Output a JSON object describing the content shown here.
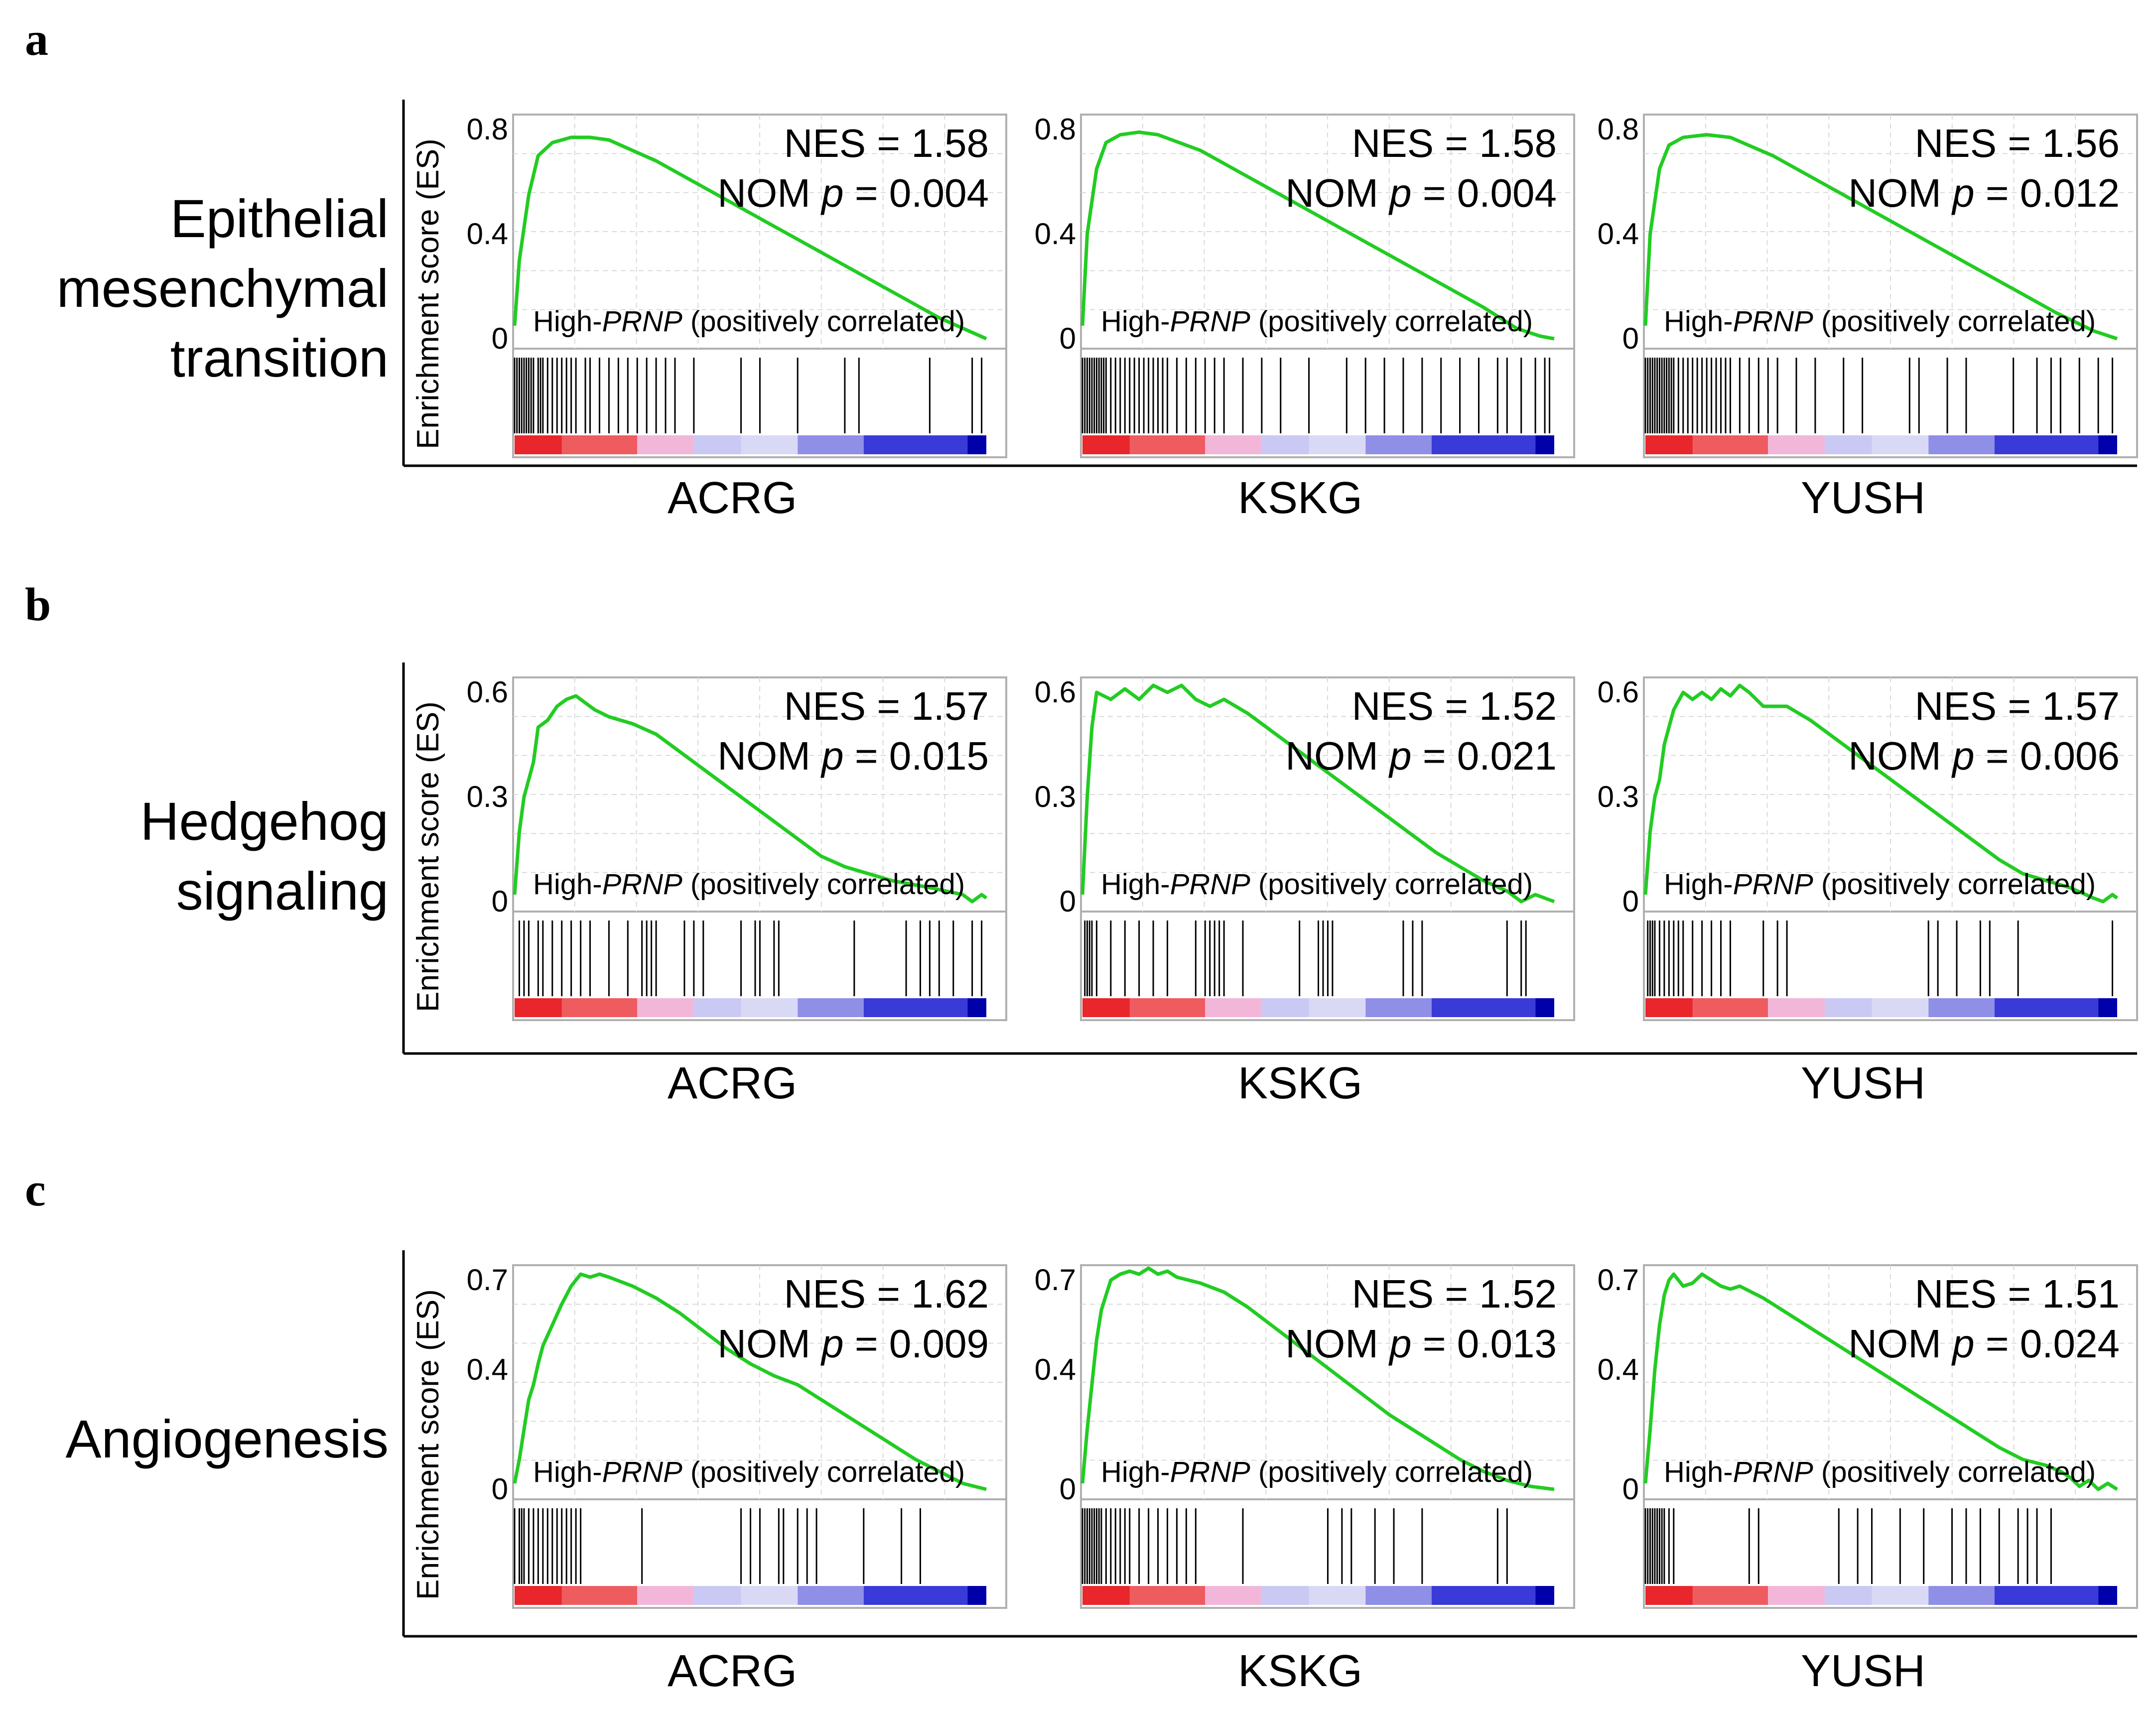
{
  "panels": [
    {
      "letter": "a",
      "title": [
        "Epithelial",
        "mesenchymal",
        "transition"
      ]
    },
    {
      "letter": "b",
      "title": [
        "Hedgehog",
        "signaling"
      ]
    },
    {
      "letter": "c",
      "title": [
        "Angiogenesis"
      ]
    }
  ],
  "datasets": [
    "ACRG",
    "KSKG",
    "YUSH"
  ],
  "ylabel": "Enrichment score (ES)",
  "corr_label": {
    "prefix": "High-",
    "gene": "PRNP",
    "suffix": " (positively correlated)"
  },
  "stat_labels": {
    "nes": "NES = ",
    "nom": "NOM ",
    "p": "p",
    "eq": " = "
  },
  "colors": {
    "es_curve": "#22cc22",
    "hits": "#000000",
    "rank_red": "#e8262b",
    "rank_pink": "#f2b6d9",
    "rank_lavender": "#c9c9f3",
    "rank_blue": "#3a3ad9",
    "rank_navy": "#0000aa"
  },
  "chart_data": [
    {
      "type": "line",
      "row": "a",
      "dataset": "ACRG",
      "nes": "1.58",
      "nom_p": "0.004",
      "yticks": [
        "0.8",
        "0.4",
        "0"
      ],
      "ylim": [
        0,
        0.8
      ],
      "es_curve": [
        [
          0,
          0.05
        ],
        [
          0.01,
          0.3
        ],
        [
          0.03,
          0.55
        ],
        [
          0.05,
          0.7
        ],
        [
          0.08,
          0.75
        ],
        [
          0.12,
          0.77
        ],
        [
          0.16,
          0.77
        ],
        [
          0.2,
          0.76
        ],
        [
          0.3,
          0.68
        ],
        [
          0.4,
          0.58
        ],
        [
          0.5,
          0.48
        ],
        [
          0.6,
          0.38
        ],
        [
          0.7,
          0.28
        ],
        [
          0.8,
          0.18
        ],
        [
          0.9,
          0.08
        ],
        [
          1.0,
          0.0
        ]
      ],
      "hits": [
        0,
        0.005,
        0.01,
        0.015,
        0.02,
        0.025,
        0.03,
        0.035,
        0.04,
        0.05,
        0.055,
        0.06,
        0.07,
        0.08,
        0.09,
        0.1,
        0.11,
        0.12,
        0.13,
        0.15,
        0.16,
        0.18,
        0.2,
        0.22,
        0.24,
        0.26,
        0.28,
        0.3,
        0.32,
        0.34,
        0.38,
        0.48,
        0.52,
        0.6,
        0.7,
        0.73,
        0.88,
        0.97,
        0.99
      ]
    },
    {
      "type": "line",
      "row": "a",
      "dataset": "KSKG",
      "nes": "1.58",
      "nom_p": "0.004",
      "yticks": [
        "0.8",
        "0.4",
        "0"
      ],
      "ylim": [
        0,
        0.8
      ],
      "es_curve": [
        [
          0,
          0.05
        ],
        [
          0.01,
          0.4
        ],
        [
          0.03,
          0.65
        ],
        [
          0.05,
          0.75
        ],
        [
          0.08,
          0.78
        ],
        [
          0.12,
          0.79
        ],
        [
          0.16,
          0.78
        ],
        [
          0.25,
          0.72
        ],
        [
          0.35,
          0.62
        ],
        [
          0.45,
          0.52
        ],
        [
          0.55,
          0.42
        ],
        [
          0.65,
          0.32
        ],
        [
          0.75,
          0.22
        ],
        [
          0.85,
          0.12
        ],
        [
          0.92,
          0.04
        ],
        [
          0.97,
          0.01
        ],
        [
          1.0,
          0.0
        ]
      ],
      "hits": [
        0,
        0.005,
        0.01,
        0.015,
        0.02,
        0.025,
        0.03,
        0.035,
        0.04,
        0.045,
        0.05,
        0.06,
        0.07,
        0.08,
        0.09,
        0.1,
        0.11,
        0.12,
        0.13,
        0.14,
        0.15,
        0.16,
        0.17,
        0.18,
        0.2,
        0.22,
        0.24,
        0.26,
        0.28,
        0.3,
        0.34,
        0.38,
        0.42,
        0.48,
        0.56,
        0.6,
        0.64,
        0.68,
        0.72,
        0.76,
        0.8,
        0.84,
        0.88,
        0.9,
        0.93,
        0.96,
        0.98,
        0.99
      ]
    },
    {
      "type": "line",
      "row": "a",
      "dataset": "YUSH",
      "nes": "1.56",
      "nom_p": "0.012",
      "yticks": [
        "0.8",
        "0.4",
        "0"
      ],
      "ylim": [
        0,
        0.8
      ],
      "es_curve": [
        [
          0,
          0.05
        ],
        [
          0.01,
          0.4
        ],
        [
          0.03,
          0.65
        ],
        [
          0.05,
          0.74
        ],
        [
          0.08,
          0.77
        ],
        [
          0.13,
          0.78
        ],
        [
          0.18,
          0.77
        ],
        [
          0.27,
          0.7
        ],
        [
          0.37,
          0.6
        ],
        [
          0.47,
          0.5
        ],
        [
          0.57,
          0.4
        ],
        [
          0.67,
          0.3
        ],
        [
          0.77,
          0.2
        ],
        [
          0.87,
          0.1
        ],
        [
          0.95,
          0.03
        ],
        [
          1.0,
          0.0
        ]
      ],
      "hits": [
        0,
        0.005,
        0.01,
        0.015,
        0.02,
        0.025,
        0.03,
        0.035,
        0.04,
        0.045,
        0.05,
        0.055,
        0.06,
        0.07,
        0.08,
        0.09,
        0.1,
        0.11,
        0.12,
        0.13,
        0.14,
        0.15,
        0.16,
        0.17,
        0.18,
        0.2,
        0.22,
        0.24,
        0.26,
        0.28,
        0.32,
        0.36,
        0.42,
        0.46,
        0.56,
        0.58,
        0.64,
        0.68,
        0.78,
        0.83,
        0.86,
        0.88,
        0.92,
        0.96,
        0.99
      ]
    },
    {
      "type": "line",
      "row": "b",
      "dataset": "ACRG",
      "nes": "1.57",
      "nom_p": "0.015",
      "yticks": [
        "0.6",
        "0.3",
        "0"
      ],
      "ylim": [
        0,
        0.6
      ],
      "es_curve": [
        [
          0,
          0.02
        ],
        [
          0.01,
          0.2
        ],
        [
          0.02,
          0.3
        ],
        [
          0.04,
          0.4
        ],
        [
          0.05,
          0.5
        ],
        [
          0.07,
          0.52
        ],
        [
          0.09,
          0.56
        ],
        [
          0.11,
          0.58
        ],
        [
          0.13,
          0.59
        ],
        [
          0.15,
          0.57
        ],
        [
          0.17,
          0.55
        ],
        [
          0.2,
          0.53
        ],
        [
          0.25,
          0.51
        ],
        [
          0.3,
          0.48
        ],
        [
          0.35,
          0.43
        ],
        [
          0.4,
          0.38
        ],
        [
          0.45,
          0.33
        ],
        [
          0.5,
          0.28
        ],
        [
          0.55,
          0.23
        ],
        [
          0.6,
          0.18
        ],
        [
          0.65,
          0.13
        ],
        [
          0.7,
          0.1
        ],
        [
          0.8,
          0.06
        ],
        [
          0.88,
          0.04
        ],
        [
          0.95,
          0.02
        ],
        [
          0.97,
          0.0
        ],
        [
          0.99,
          0.02
        ],
        [
          1.0,
          0.01
        ]
      ],
      "hits": [
        0.01,
        0.02,
        0.03,
        0.05,
        0.06,
        0.08,
        0.1,
        0.12,
        0.14,
        0.16,
        0.2,
        0.24,
        0.27,
        0.28,
        0.29,
        0.3,
        0.36,
        0.38,
        0.4,
        0.48,
        0.51,
        0.52,
        0.55,
        0.56,
        0.72,
        0.83,
        0.86,
        0.88,
        0.9,
        0.93,
        0.97,
        0.99
      ]
    },
    {
      "type": "line",
      "row": "b",
      "dataset": "KSKG",
      "nes": "1.52",
      "nom_p": "0.021",
      "yticks": [
        "0.6",
        "0.3",
        "0"
      ],
      "ylim": [
        0,
        0.6
      ],
      "es_curve": [
        [
          0,
          0.02
        ],
        [
          0.01,
          0.3
        ],
        [
          0.02,
          0.5
        ],
        [
          0.03,
          0.6
        ],
        [
          0.06,
          0.58
        ],
        [
          0.09,
          0.61
        ],
        [
          0.12,
          0.58
        ],
        [
          0.15,
          0.62
        ],
        [
          0.18,
          0.6
        ],
        [
          0.21,
          0.62
        ],
        [
          0.24,
          0.58
        ],
        [
          0.27,
          0.56
        ],
        [
          0.3,
          0.58
        ],
        [
          0.35,
          0.54
        ],
        [
          0.4,
          0.49
        ],
        [
          0.45,
          0.44
        ],
        [
          0.5,
          0.39
        ],
        [
          0.55,
          0.34
        ],
        [
          0.6,
          0.29
        ],
        [
          0.65,
          0.24
        ],
        [
          0.7,
          0.19
        ],
        [
          0.75,
          0.14
        ],
        [
          0.8,
          0.1
        ],
        [
          0.85,
          0.06
        ],
        [
          0.9,
          0.03
        ],
        [
          0.93,
          0.0
        ],
        [
          0.96,
          0.02
        ],
        [
          1.0,
          0.0
        ]
      ],
      "hits": [
        0.005,
        0.01,
        0.015,
        0.02,
        0.03,
        0.06,
        0.09,
        0.12,
        0.15,
        0.18,
        0.24,
        0.26,
        0.27,
        0.28,
        0.29,
        0.3,
        0.34,
        0.46,
        0.5,
        0.51,
        0.52,
        0.53,
        0.68,
        0.7,
        0.72,
        0.9,
        0.93,
        0.94
      ]
    },
    {
      "type": "line",
      "row": "b",
      "dataset": "YUSH",
      "nes": "1.57",
      "nom_p": "0.006",
      "yticks": [
        "0.6",
        "0.3",
        "0"
      ],
      "ylim": [
        0,
        0.6
      ],
      "es_curve": [
        [
          0,
          0.02
        ],
        [
          0.01,
          0.2
        ],
        [
          0.02,
          0.3
        ],
        [
          0.03,
          0.35
        ],
        [
          0.04,
          0.45
        ],
        [
          0.05,
          0.5
        ],
        [
          0.06,
          0.55
        ],
        [
          0.08,
          0.6
        ],
        [
          0.1,
          0.58
        ],
        [
          0.12,
          0.6
        ],
        [
          0.14,
          0.58
        ],
        [
          0.16,
          0.61
        ],
        [
          0.18,
          0.59
        ],
        [
          0.2,
          0.62
        ],
        [
          0.22,
          0.6
        ],
        [
          0.25,
          0.56
        ],
        [
          0.3,
          0.56
        ],
        [
          0.35,
          0.52
        ],
        [
          0.4,
          0.47
        ],
        [
          0.45,
          0.42
        ],
        [
          0.5,
          0.37
        ],
        [
          0.55,
          0.32
        ],
        [
          0.6,
          0.27
        ],
        [
          0.65,
          0.22
        ],
        [
          0.7,
          0.17
        ],
        [
          0.75,
          0.12
        ],
        [
          0.8,
          0.08
        ],
        [
          0.85,
          0.06
        ],
        [
          0.9,
          0.04
        ],
        [
          0.95,
          0.01
        ],
        [
          0.97,
          0.0
        ],
        [
          0.99,
          0.02
        ],
        [
          1.0,
          0.01
        ]
      ],
      "hits": [
        0.005,
        0.01,
        0.015,
        0.02,
        0.03,
        0.04,
        0.05,
        0.06,
        0.07,
        0.08,
        0.1,
        0.12,
        0.14,
        0.16,
        0.18,
        0.25,
        0.28,
        0.3,
        0.6,
        0.62,
        0.66,
        0.71,
        0.73,
        0.79,
        0.99
      ]
    },
    {
      "type": "line",
      "row": "c",
      "dataset": "ACRG",
      "nes": "1.62",
      "nom_p": "0.009",
      "yticks": [
        "0.7",
        "0.4",
        "0"
      ],
      "ylim": [
        0,
        0.7
      ],
      "es_curve": [
        [
          0,
          0.02
        ],
        [
          0.01,
          0.1
        ],
        [
          0.02,
          0.2
        ],
        [
          0.03,
          0.3
        ],
        [
          0.04,
          0.35
        ],
        [
          0.05,
          0.42
        ],
        [
          0.06,
          0.48
        ],
        [
          0.08,
          0.55
        ],
        [
          0.1,
          0.62
        ],
        [
          0.12,
          0.68
        ],
        [
          0.14,
          0.72
        ],
        [
          0.16,
          0.71
        ],
        [
          0.18,
          0.72
        ],
        [
          0.2,
          0.71
        ],
        [
          0.25,
          0.68
        ],
        [
          0.3,
          0.64
        ],
        [
          0.35,
          0.59
        ],
        [
          0.4,
          0.53
        ],
        [
          0.45,
          0.47
        ],
        [
          0.5,
          0.42
        ],
        [
          0.55,
          0.38
        ],
        [
          0.6,
          0.35
        ],
        [
          0.65,
          0.3
        ],
        [
          0.7,
          0.25
        ],
        [
          0.75,
          0.2
        ],
        [
          0.8,
          0.15
        ],
        [
          0.85,
          0.1
        ],
        [
          0.9,
          0.06
        ],
        [
          0.95,
          0.02
        ],
        [
          1.0,
          0.0
        ]
      ],
      "hits": [
        0.0,
        0.01,
        0.015,
        0.02,
        0.03,
        0.04,
        0.05,
        0.06,
        0.07,
        0.08,
        0.09,
        0.1,
        0.11,
        0.12,
        0.13,
        0.14,
        0.27,
        0.48,
        0.5,
        0.52,
        0.56,
        0.57,
        0.6,
        0.62,
        0.64,
        0.74,
        0.82,
        0.86
      ]
    },
    {
      "type": "line",
      "row": "c",
      "dataset": "KSKG",
      "nes": "1.52",
      "nom_p": "0.013",
      "yticks": [
        "0.7",
        "0.4",
        "0"
      ],
      "ylim": [
        0,
        0.7
      ],
      "es_curve": [
        [
          0,
          0.02
        ],
        [
          0.01,
          0.2
        ],
        [
          0.02,
          0.35
        ],
        [
          0.03,
          0.5
        ],
        [
          0.04,
          0.6
        ],
        [
          0.05,
          0.65
        ],
        [
          0.06,
          0.7
        ],
        [
          0.08,
          0.72
        ],
        [
          0.1,
          0.73
        ],
        [
          0.12,
          0.72
        ],
        [
          0.14,
          0.74
        ],
        [
          0.16,
          0.72
        ],
        [
          0.18,
          0.73
        ],
        [
          0.2,
          0.71
        ],
        [
          0.25,
          0.69
        ],
        [
          0.3,
          0.66
        ],
        [
          0.35,
          0.61
        ],
        [
          0.4,
          0.55
        ],
        [
          0.45,
          0.49
        ],
        [
          0.5,
          0.43
        ],
        [
          0.55,
          0.37
        ],
        [
          0.6,
          0.31
        ],
        [
          0.65,
          0.25
        ],
        [
          0.7,
          0.2
        ],
        [
          0.75,
          0.15
        ],
        [
          0.8,
          0.1
        ],
        [
          0.85,
          0.06
        ],
        [
          0.9,
          0.03
        ],
        [
          0.95,
          0.01
        ],
        [
          1.0,
          0.0
        ]
      ],
      "hits": [
        0.0,
        0.005,
        0.01,
        0.015,
        0.02,
        0.025,
        0.03,
        0.035,
        0.04,
        0.05,
        0.06,
        0.07,
        0.08,
        0.09,
        0.1,
        0.12,
        0.14,
        0.16,
        0.18,
        0.2,
        0.22,
        0.24,
        0.34,
        0.52,
        0.55,
        0.57,
        0.62,
        0.66,
        0.72,
        0.88,
        0.9
      ]
    },
    {
      "type": "line",
      "row": "c",
      "dataset": "YUSH",
      "nes": "1.51",
      "nom_p": "0.024",
      "yticks": [
        "0.7",
        "0.4",
        "0"
      ],
      "ylim": [
        0,
        0.7
      ],
      "es_curve": [
        [
          0,
          0.02
        ],
        [
          0.01,
          0.2
        ],
        [
          0.02,
          0.4
        ],
        [
          0.03,
          0.55
        ],
        [
          0.04,
          0.65
        ],
        [
          0.05,
          0.7
        ],
        [
          0.06,
          0.72
        ],
        [
          0.07,
          0.7
        ],
        [
          0.08,
          0.68
        ],
        [
          0.1,
          0.69
        ],
        [
          0.12,
          0.72
        ],
        [
          0.14,
          0.7
        ],
        [
          0.16,
          0.68
        ],
        [
          0.18,
          0.67
        ],
        [
          0.2,
          0.68
        ],
        [
          0.25,
          0.64
        ],
        [
          0.3,
          0.59
        ],
        [
          0.35,
          0.54
        ],
        [
          0.4,
          0.49
        ],
        [
          0.45,
          0.44
        ],
        [
          0.5,
          0.39
        ],
        [
          0.55,
          0.34
        ],
        [
          0.6,
          0.29
        ],
        [
          0.65,
          0.24
        ],
        [
          0.7,
          0.19
        ],
        [
          0.75,
          0.14
        ],
        [
          0.8,
          0.1
        ],
        [
          0.85,
          0.08
        ],
        [
          0.88,
          0.06
        ],
        [
          0.9,
          0.04
        ],
        [
          0.92,
          0.01
        ],
        [
          0.94,
          0.03
        ],
        [
          0.96,
          0.0
        ],
        [
          0.98,
          0.02
        ],
        [
          1.0,
          0.0
        ]
      ],
      "hits": [
        0.0,
        0.005,
        0.01,
        0.015,
        0.02,
        0.025,
        0.03,
        0.035,
        0.04,
        0.05,
        0.06,
        0.22,
        0.24,
        0.41,
        0.45,
        0.48,
        0.54,
        0.59,
        0.65,
        0.68,
        0.71,
        0.75,
        0.79,
        0.81,
        0.83,
        0.86
      ]
    }
  ]
}
